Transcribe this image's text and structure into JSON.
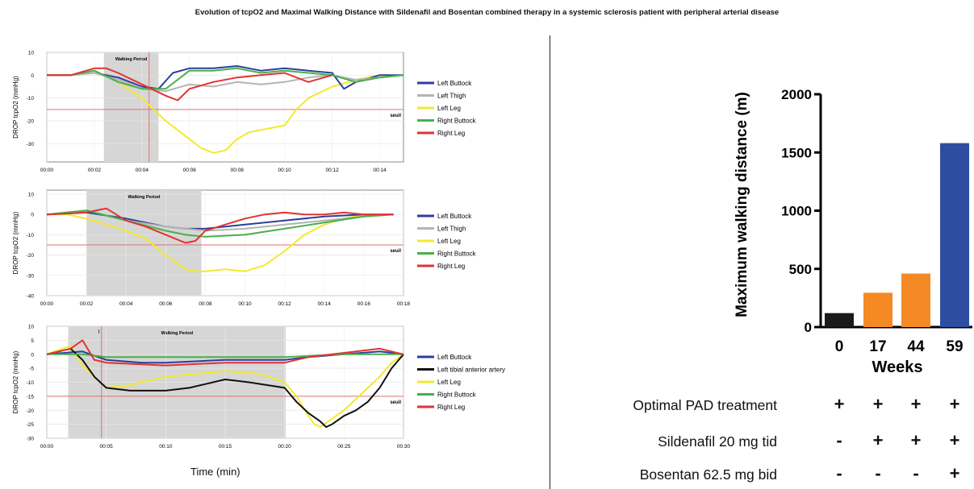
{
  "title": "Evolution of tcpO2 and Maximal Walking Distance with Sildenafil and Bosentan combined therapy in a systemic sclerosis patient with peripheral arterial disease",
  "time_axis_label": "Time (min)",
  "colors": {
    "left_buttock": "#2b3f9a",
    "left_thigh": "#b4b4b4",
    "left_leg": "#f2ea2b",
    "right_buttock": "#48b04a",
    "right_leg": "#e23232",
    "left_tibial": "#111111",
    "threshold": "#e07070",
    "walking_shade": "#d6d6d6",
    "bar_black": "#1a1a1a",
    "bar_orange": "#f58a24",
    "bar_blue": "#2e4da0"
  },
  "chart_data": [
    {
      "type": "line",
      "ylabel": "DROP tcpO2 (mmHg)",
      "ylim": [
        -38,
        10
      ],
      "yticks": [
        10,
        0,
        -10,
        -20,
        -30
      ],
      "xticks": [
        "00:00",
        "00:02",
        "00:04",
        "00:06",
        "00:08",
        "00:10",
        "00:12",
        "00:14"
      ],
      "xmax_min": 15,
      "walking_period_label": "Walking Period",
      "walking_period_min": [
        2.4,
        4.7
      ],
      "marker_min": 4.3,
      "threshold_label": "seuil",
      "threshold": -15,
      "series": [
        {
          "name": "Left Buttock",
          "color_key": "left_buttock",
          "x": [
            0,
            1,
            2,
            3,
            4,
            4.7,
            5.3,
            6,
            7,
            8,
            9,
            10,
            11,
            12,
            12.5,
            13,
            14,
            15
          ],
          "y": [
            0,
            0,
            1,
            -1,
            -5,
            -6,
            1,
            3,
            3,
            4,
            2,
            3,
            2,
            1,
            -6,
            -3,
            0,
            0
          ]
        },
        {
          "name": "Left Thigh",
          "color_key": "left_thigh",
          "x": [
            0,
            1,
            2,
            3,
            4,
            5,
            6,
            7,
            8,
            9,
            10,
            11,
            12,
            13,
            14,
            15
          ],
          "y": [
            0,
            0,
            1,
            -2,
            -6,
            -7,
            -4,
            -5,
            -3,
            -4,
            -3,
            -1,
            0,
            -2,
            -1,
            0
          ]
        },
        {
          "name": "Left Leg",
          "color_key": "left_leg",
          "x": [
            0,
            1,
            2,
            3,
            4,
            5,
            6,
            6.5,
            7,
            7.5,
            8,
            8.5,
            9,
            10,
            10.5,
            11,
            12,
            13,
            14,
            15
          ],
          "y": [
            0,
            0,
            2,
            -3,
            -10,
            -20,
            -28,
            -32,
            -34,
            -33,
            -28,
            -25,
            -24,
            -22,
            -15,
            -10,
            -5,
            -2,
            0,
            0
          ]
        },
        {
          "name": "Right Buttock",
          "color_key": "right_buttock",
          "x": [
            0,
            1,
            2,
            3,
            4,
            5,
            6,
            7,
            8,
            9,
            10,
            11,
            12,
            13,
            14,
            15
          ],
          "y": [
            0,
            0,
            2,
            -3,
            -6,
            -6,
            2,
            2,
            3,
            1,
            2,
            1,
            0,
            -3,
            -1,
            0
          ]
        },
        {
          "name": "Right Leg",
          "color_key": "right_leg",
          "x": [
            0,
            1,
            2,
            2.5,
            3,
            4,
            5,
            5.5,
            6,
            7,
            8,
            9,
            10,
            11,
            12
          ],
          "y": [
            0,
            0,
            3,
            3,
            1,
            -4,
            -9,
            -11,
            -6,
            -3,
            -1,
            0,
            1,
            -3,
            0
          ]
        }
      ]
    },
    {
      "type": "line",
      "ylabel": "DROP tcpO2 (mmHg)",
      "ylim": [
        -40,
        12
      ],
      "yticks": [
        10,
        0,
        -10,
        -20,
        -30,
        -40
      ],
      "xticks": [
        "00:00",
        "00:02",
        "00:04",
        "00:06",
        "00:08",
        "00:10",
        "00:12",
        "00:14",
        "00:16",
        "00:18"
      ],
      "xmax_min": 18,
      "walking_period_label": "Walking Period",
      "walking_period_min": [
        2.0,
        7.8
      ],
      "threshold_label": "seuil",
      "threshold": -15,
      "series": [
        {
          "name": "Left Buttock",
          "color_key": "left_buttock",
          "x": [
            0,
            2,
            4,
            6,
            7,
            8,
            10,
            12,
            14,
            16,
            17.5
          ],
          "y": [
            0,
            1,
            -2,
            -6,
            -7,
            -7,
            -5,
            -3,
            -1,
            0,
            0
          ]
        },
        {
          "name": "Left Thigh",
          "color_key": "left_thigh",
          "x": [
            0,
            2,
            4,
            6,
            8,
            10,
            12,
            14,
            16,
            17.5
          ],
          "y": [
            0,
            2,
            -3,
            -6,
            -8,
            -7,
            -5,
            -3,
            -1,
            0
          ]
        },
        {
          "name": "Left Leg",
          "color_key": "left_leg",
          "x": [
            0,
            1,
            2,
            3,
            4,
            5,
            6,
            7,
            7.5,
            8,
            9,
            10,
            11,
            12,
            13,
            14,
            15,
            16,
            17.5
          ],
          "y": [
            0,
            0,
            -2,
            -5,
            -8,
            -12,
            -20,
            -27,
            -28,
            -28,
            -27,
            -28,
            -25,
            -18,
            -10,
            -5,
            -2,
            0,
            0
          ]
        },
        {
          "name": "Right Buttock",
          "color_key": "right_buttock",
          "x": [
            0,
            2,
            4,
            6,
            7,
            8,
            10,
            12,
            14,
            16,
            17.5
          ],
          "y": [
            0,
            2,
            -3,
            -8,
            -10,
            -11,
            -10,
            -7,
            -4,
            -1,
            0
          ]
        },
        {
          "name": "Right Leg",
          "color_key": "right_leg",
          "x": [
            0,
            2,
            3,
            4,
            5,
            6,
            7,
            7.5,
            8,
            9,
            10,
            11,
            12,
            13,
            14,
            15,
            16,
            17.5
          ],
          "y": [
            0,
            1,
            3,
            -3,
            -6,
            -10,
            -14,
            -13,
            -8,
            -5,
            -2,
            0,
            1,
            0,
            0,
            1,
            0,
            0
          ]
        }
      ]
    },
    {
      "type": "line",
      "ylabel": "DROP tcpO2 (mmHg)",
      "ylim": [
        -30,
        10
      ],
      "yticks": [
        10,
        5,
        0,
        -5,
        -10,
        -15,
        -20,
        -25,
        -30
      ],
      "xticks": [
        "00:00",
        "00:05",
        "00:10",
        "00:15",
        "00:20",
        "00:25",
        "00:30"
      ],
      "xmax_min": 30,
      "walking_period_label": "Walking Period",
      "walking_period_min": [
        1.8,
        20.1
      ],
      "marker_label": "I",
      "marker_min": 4.6,
      "threshold_label": "seuil",
      "threshold": -15,
      "series": [
        {
          "name": "Left Buttock",
          "color_key": "left_buttock",
          "x": [
            0,
            3,
            5,
            8,
            10,
            15,
            20,
            22,
            25,
            28,
            30
          ],
          "y": [
            0,
            1,
            -2,
            -3,
            -3,
            -2,
            -2,
            -1,
            0,
            1,
            0
          ]
        },
        {
          "name": "Left tibial anterior artery",
          "color_key": "left_tibial",
          "x": [
            0,
            2,
            3,
            4,
            5,
            7,
            10,
            12,
            15,
            17,
            20,
            21,
            22,
            23,
            23.5,
            24,
            25,
            26,
            27,
            28,
            29,
            30
          ],
          "y": [
            0,
            2,
            -2,
            -8,
            -12,
            -13,
            -13,
            -12,
            -9,
            -10,
            -12,
            -17,
            -21,
            -24,
            -26,
            -25,
            -22,
            -20,
            -17,
            -12,
            -5,
            0
          ]
        },
        {
          "name": "Left Leg",
          "color_key": "left_leg",
          "x": [
            0,
            2,
            3,
            4,
            5,
            7,
            10,
            15,
            18,
            20,
            21,
            22,
            22.5,
            23,
            24,
            25,
            26,
            27,
            28,
            29,
            30
          ],
          "y": [
            0,
            3,
            -4,
            -8,
            -12,
            -11,
            -8,
            -6,
            -7,
            -10,
            -15,
            -22,
            -25,
            -26,
            -23,
            -20,
            -16,
            -12,
            -8,
            -3,
            0
          ]
        },
        {
          "name": "Right Buttock",
          "color_key": "right_buttock",
          "x": [
            0,
            3,
            5,
            10,
            15,
            20,
            25,
            30
          ],
          "y": [
            0,
            0,
            -1,
            -1,
            -1,
            -1,
            0,
            0
          ]
        },
        {
          "name": "Right Leg",
          "color_key": "right_leg",
          "x": [
            0,
            2,
            3,
            4,
            5,
            10,
            15,
            20,
            22,
            24,
            26,
            28,
            30
          ],
          "y": [
            0,
            2,
            5,
            -2,
            -3,
            -4,
            -3,
            -3,
            -1,
            0,
            1,
            2,
            0
          ]
        }
      ]
    },
    {
      "type": "bar",
      "categories": [
        "0",
        "17",
        "44",
        "59"
      ],
      "values": [
        120,
        295,
        460,
        1580
      ],
      "bar_color_keys": [
        "bar_black",
        "bar_orange",
        "bar_orange",
        "bar_blue"
      ],
      "xlabel": "Weeks",
      "ylabel": "Maximum walking distance (m)",
      "ylim": [
        0,
        2000
      ],
      "yticks": [
        0,
        500,
        1000,
        1500,
        2000
      ]
    }
  ],
  "treatments": [
    {
      "label": "Optimal PAD treatment",
      "signs": [
        "+",
        "+",
        "+",
        "+"
      ]
    },
    {
      "label": "Sildenafil 20 mg tid",
      "signs": [
        "-",
        "+",
        "+",
        "+"
      ]
    },
    {
      "label": "Bosentan 62.5 mg bid",
      "signs": [
        "-",
        "-",
        "-",
        "+"
      ]
    }
  ]
}
